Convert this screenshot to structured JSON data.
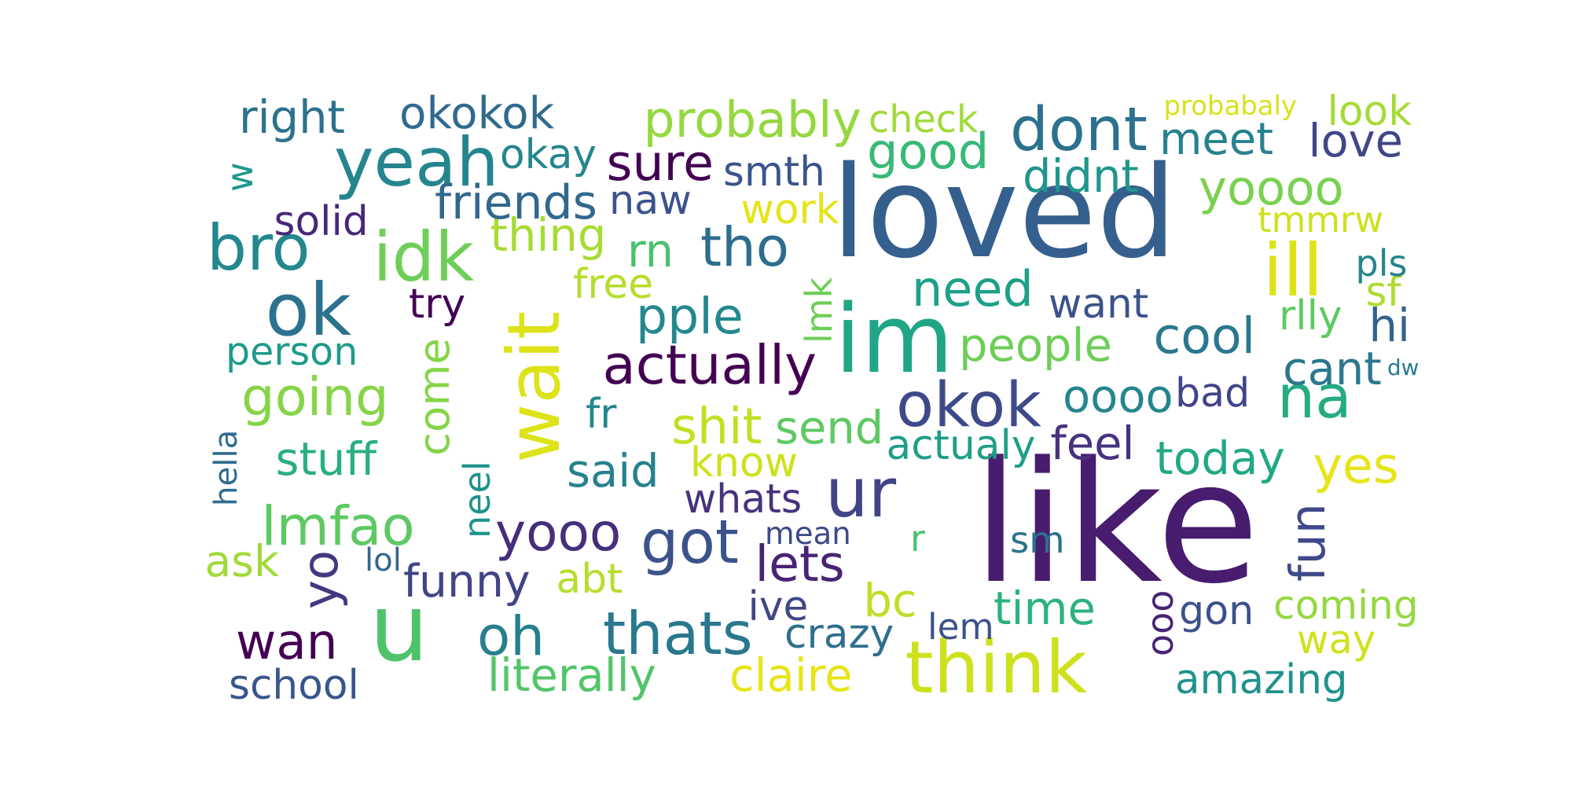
{
  "words": [
    {
      "text": "like",
      "color": "#481c6e",
      "vertical": false
    },
    {
      "text": "loved",
      "color": "#355f8d",
      "vertical": false
    },
    {
      "text": "im",
      "color": "#21a685",
      "vertical": false
    },
    {
      "text": "wait",
      "color": "#dde318",
      "vertical": true
    },
    {
      "text": "u",
      "color": "#4ec36b",
      "vertical": false
    },
    {
      "text": "ill",
      "color": "#dde318",
      "vertical": false
    },
    {
      "text": "think",
      "color": "#cde11d",
      "vertical": false
    },
    {
      "text": "oh",
      "color": "#277f8e",
      "vertical": false
    },
    {
      "text": "thats",
      "color": "#2a788e",
      "vertical": false
    },
    {
      "text": "yeah",
      "color": "#25858e",
      "vertical": false
    },
    {
      "text": "ok",
      "color": "#2c728e",
      "vertical": false
    },
    {
      "text": "bro",
      "color": "#23888e",
      "vertical": false
    },
    {
      "text": "idk",
      "color": "#6ece58",
      "vertical": false
    },
    {
      "text": "ur",
      "color": "#414487",
      "vertical": false
    },
    {
      "text": "okok",
      "color": "#3e4989",
      "vertical": false
    },
    {
      "text": "dont",
      "color": "#2c728e",
      "vertical": false
    },
    {
      "text": "na",
      "color": "#25ab82",
      "vertical": false
    },
    {
      "text": "got",
      "color": "#3b528b",
      "vertical": false
    },
    {
      "text": "tho",
      "color": "#2e6d8e",
      "vertical": false
    },
    {
      "text": "wan",
      "color": "#440154",
      "vertical": false
    },
    {
      "text": "lmfao",
      "color": "#5ec962",
      "vertical": false
    },
    {
      "text": "yooo",
      "color": "#472d7b",
      "vertical": false
    },
    {
      "text": "need",
      "color": "#1fa088",
      "vertical": false
    },
    {
      "text": "good",
      "color": "#38b977",
      "vertical": false
    },
    {
      "text": "actually",
      "color": "#440154",
      "vertical": false
    },
    {
      "text": "yes",
      "color": "#e7e419",
      "vertical": false
    },
    {
      "text": "probably",
      "color": "#95d840",
      "vertical": false
    },
    {
      "text": "sure",
      "color": "#440154",
      "vertical": false
    },
    {
      "text": "yoooo",
      "color": "#7ad151",
      "vertical": false
    },
    {
      "text": "meet",
      "color": "#26828e",
      "vertical": false
    },
    {
      "text": "cool",
      "color": "#2a788e",
      "vertical": false
    },
    {
      "text": "going",
      "color": "#86d549",
      "vertical": false
    },
    {
      "text": "come",
      "color": "#86d549",
      "vertical": true
    },
    {
      "text": "shit",
      "color": "#c2df23",
      "vertical": false
    },
    {
      "text": "pple",
      "color": "#23888e",
      "vertical": false
    },
    {
      "text": "literally",
      "color": "#52c569",
      "vertical": false
    },
    {
      "text": "claire",
      "color": "#e7e419",
      "vertical": false
    },
    {
      "text": "right",
      "color": "#2c728e",
      "vertical": false
    },
    {
      "text": "love",
      "color": "#404688",
      "vertical": false
    },
    {
      "text": "want",
      "color": "#3b528b",
      "vertical": false
    },
    {
      "text": "oooo",
      "color": "#25858e",
      "vertical": false
    },
    {
      "text": "people",
      "color": "#6ece58",
      "vertical": false
    },
    {
      "text": "time",
      "color": "#2db27d",
      "vertical": false
    },
    {
      "text": "coming",
      "color": "#95d840",
      "vertical": false
    },
    {
      "text": "feel",
      "color": "#46327e",
      "vertical": false
    },
    {
      "text": "today",
      "color": "#22a884",
      "vertical": false
    },
    {
      "text": "fun",
      "color": "#3e4989",
      "vertical": true
    },
    {
      "text": "bc",
      "color": "#bddf26",
      "vertical": false
    },
    {
      "text": "way",
      "color": "#d0e11c",
      "vertical": false
    },
    {
      "text": "okokok",
      "color": "#306a8e",
      "vertical": false
    },
    {
      "text": "funny",
      "color": "#414487",
      "vertical": false
    },
    {
      "text": "stuff",
      "color": "#29af7f",
      "vertical": false
    },
    {
      "text": "rn",
      "color": "#4ac16d",
      "vertical": false
    },
    {
      "text": "thing",
      "color": "#a8db34",
      "vertical": false
    },
    {
      "text": "naw",
      "color": "#3b528b",
      "vertical": false
    },
    {
      "text": "smth",
      "color": "#39558c",
      "vertical": false
    },
    {
      "text": "okay",
      "color": "#25858e",
      "vertical": false
    },
    {
      "text": "friends",
      "color": "#31688e",
      "vertical": false
    },
    {
      "text": "know",
      "color": "#cde11d",
      "vertical": false
    },
    {
      "text": "said",
      "color": "#26828e",
      "vertical": false
    },
    {
      "text": "lets",
      "color": "#482475",
      "vertical": false
    },
    {
      "text": "didnt",
      "color": "#1f968b",
      "vertical": false
    },
    {
      "text": "amazing",
      "color": "#20928c",
      "vertical": false
    },
    {
      "text": "hi",
      "color": "#33638d",
      "vertical": false
    },
    {
      "text": "cant",
      "color": "#2a788e",
      "vertical": false
    },
    {
      "text": "yo",
      "color": "#453781",
      "vertical": true
    },
    {
      "text": "neel",
      "color": "#20928c",
      "vertical": true
    },
    {
      "text": "school",
      "color": "#39568c",
      "vertical": false
    },
    {
      "text": "ooo",
      "color": "#482475",
      "vertical": true
    },
    {
      "text": "send",
      "color": "#5ec962",
      "vertical": false
    },
    {
      "text": "bad",
      "color": "#414487",
      "vertical": false
    },
    {
      "text": "fr",
      "color": "#24868e",
      "vertical": false
    },
    {
      "text": "abt",
      "color": "#b5de2b",
      "vertical": false
    },
    {
      "text": "ask",
      "color": "#a0da39",
      "vertical": false
    },
    {
      "text": "w",
      "color": "#1f988b",
      "vertical": true
    },
    {
      "text": "try",
      "color": "#440154",
      "vertical": false
    },
    {
      "text": "whats",
      "color": "#46327e",
      "vertical": false
    },
    {
      "text": "actualy",
      "color": "#1f9e89",
      "vertical": false
    },
    {
      "text": "look",
      "color": "#a5db36",
      "vertical": false
    },
    {
      "text": "ive",
      "color": "#3f4788",
      "vertical": false
    },
    {
      "text": "crazy",
      "color": "#2e6f8e",
      "vertical": false
    },
    {
      "text": "gon",
      "color": "#3b518b",
      "vertical": false
    },
    {
      "text": "sm",
      "color": "#2c718e",
      "vertical": false
    },
    {
      "text": "work",
      "color": "#e5e419",
      "vertical": false
    },
    {
      "text": "tmmrw",
      "color": "#cde11d",
      "vertical": false
    },
    {
      "text": "mean",
      "color": "#3e4a89",
      "vertical": false
    },
    {
      "text": "person",
      "color": "#1f9a8a",
      "vertical": false
    },
    {
      "text": "check",
      "color": "#a0da39",
      "vertical": false
    },
    {
      "text": "solid",
      "color": "#482878",
      "vertical": false
    },
    {
      "text": "hella",
      "color": "#2f6c8e",
      "vertical": true
    },
    {
      "text": "lmk",
      "color": "#6ece58",
      "vertical": true
    },
    {
      "text": "r",
      "color": "#4ac16d",
      "vertical": false
    },
    {
      "text": "lem",
      "color": "#3b528b",
      "vertical": false
    },
    {
      "text": "sf",
      "color": "#addc30",
      "vertical": false
    },
    {
      "text": "pls",
      "color": "#25858e",
      "vertical": false
    },
    {
      "text": "rlly",
      "color": "#5ec962",
      "vertical": false
    },
    {
      "text": "free",
      "color": "#b5de2b",
      "vertical": false
    },
    {
      "text": "lol",
      "color": "#31688e",
      "vertical": false
    },
    {
      "text": "dw",
      "color": "#287c8e",
      "vertical": false
    },
    {
      "text": "probabaly",
      "color": "#d8e219",
      "vertical": false
    }
  ]
}
